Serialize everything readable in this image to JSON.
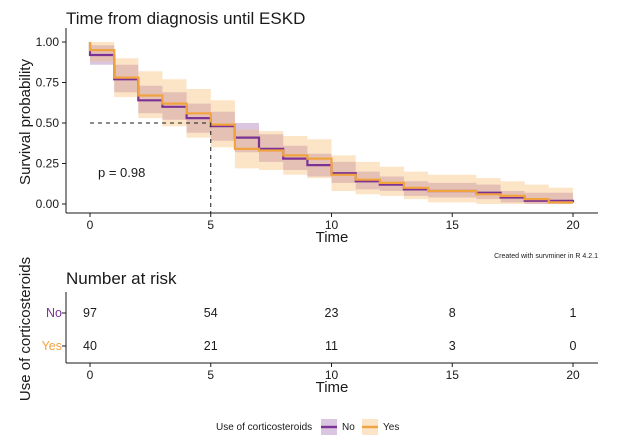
{
  "colors": {
    "no": "#7b3294",
    "yes": "#f1a340",
    "no_band": "#7b3294",
    "yes_band": "#f6b86b"
  },
  "chart_data": [
    {
      "type": "line",
      "title": "Time from diagnosis until ESKD",
      "xlabel": "Time",
      "ylabel": "Survival probability",
      "xlim": [
        0,
        20
      ],
      "ylim": [
        0,
        1
      ],
      "xticks": [
        0,
        5,
        10,
        15,
        20
      ],
      "yticks": [
        0,
        0.25,
        0.5,
        0.75,
        1
      ],
      "xtick_labels": [
        "0",
        "5",
        "10",
        "15",
        "20"
      ],
      "ytick_labels": [
        "0.00",
        "0.25",
        "0.50",
        "0.75",
        "1.00"
      ],
      "grid": false,
      "step": true,
      "annotation": "p = 0.98",
      "median_survival": 5,
      "note": "Created with survminer in R 4.2.1",
      "series": [
        {
          "name": "No",
          "x": [
            0,
            1,
            2,
            3,
            4,
            5,
            6,
            7,
            8,
            9,
            10,
            11,
            12,
            13,
            14,
            15,
            16,
            17,
            18,
            19,
            20
          ],
          "y": [
            0.92,
            0.77,
            0.64,
            0.6,
            0.53,
            0.48,
            0.41,
            0.34,
            0.28,
            0.24,
            0.19,
            0.14,
            0.12,
            0.09,
            0.08,
            0.08,
            0.07,
            0.04,
            0.02,
            0.02,
            0.01
          ],
          "lower": [
            0.86,
            0.69,
            0.56,
            0.52,
            0.44,
            0.39,
            0.32,
            0.26,
            0.21,
            0.17,
            0.13,
            0.09,
            0.08,
            0.05,
            0.04,
            0.04,
            0.03,
            0.01,
            0,
            0,
            0
          ],
          "upper": [
            0.98,
            0.86,
            0.73,
            0.69,
            0.62,
            0.57,
            0.5,
            0.43,
            0.36,
            0.31,
            0.26,
            0.2,
            0.17,
            0.14,
            0.13,
            0.13,
            0.12,
            0.08,
            0.07,
            0.07,
            0.07
          ]
        },
        {
          "name": "Yes",
          "x": [
            0,
            1,
            2,
            3,
            4,
            5,
            6,
            7,
            8,
            9,
            10,
            11,
            12,
            13,
            14,
            15,
            16,
            17,
            18,
            19,
            20
          ],
          "y": [
            0.95,
            0.78,
            0.67,
            0.62,
            0.56,
            0.49,
            0.34,
            0.33,
            0.3,
            0.28,
            0.18,
            0.15,
            0.13,
            0.1,
            0.08,
            0.08,
            0.06,
            0.05,
            0.03,
            0.01,
            0.01
          ],
          "lower": [
            0.88,
            0.66,
            0.53,
            0.48,
            0.41,
            0.35,
            0.22,
            0.21,
            0.18,
            0.16,
            0.08,
            0.06,
            0.05,
            0.03,
            0.01,
            0.01,
            0,
            0,
            0,
            0,
            0
          ],
          "upper": [
            1,
            0.9,
            0.82,
            0.77,
            0.71,
            0.64,
            0.46,
            0.45,
            0.42,
            0.4,
            0.3,
            0.26,
            0.23,
            0.2,
            0.18,
            0.18,
            0.16,
            0.14,
            0.12,
            0.1,
            0.1
          ]
        }
      ]
    },
    {
      "type": "table",
      "title": "Number at risk",
      "xlabel": "Time",
      "ylabel": "Use of corticosteroids",
      "xlim": [
        0,
        20
      ],
      "xticks": [
        0,
        5,
        10,
        15,
        20
      ],
      "xtick_labels": [
        "0",
        "5",
        "10",
        "15",
        "20"
      ],
      "rows": [
        {
          "name": "No",
          "values": [
            "97",
            "54",
            "23",
            "8",
            "1"
          ]
        },
        {
          "name": "Yes",
          "values": [
            "40",
            "21",
            "11",
            "3",
            "0"
          ]
        }
      ]
    }
  ],
  "legend": {
    "title": "Use of corticosteroids",
    "items": [
      {
        "label": "No"
      },
      {
        "label": "Yes"
      }
    ],
    "position": "bottom"
  }
}
